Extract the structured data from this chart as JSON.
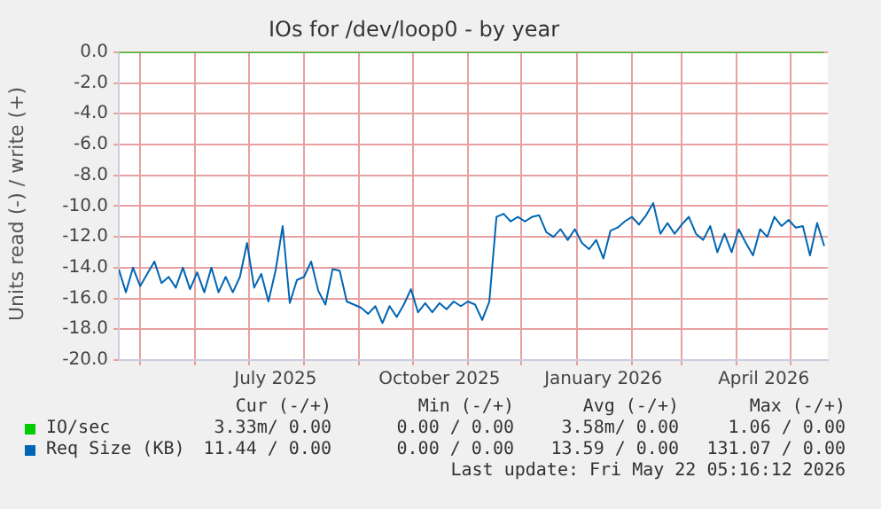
{
  "chart_data": {
    "type": "line",
    "title": "IOs for /dev/loop0 - by year",
    "ylabel": "Units read (-) / write (+)",
    "xlim": [
      "2025-04-19",
      "2026-05-22"
    ],
    "xticks": [
      {
        "value": "2025-05-01",
        "label": null
      },
      {
        "value": "2025-06-01",
        "label": null
      },
      {
        "value": "2025-07-01",
        "label": null
      },
      {
        "value": "2025-07-16",
        "label": "July 2025"
      },
      {
        "value": "2025-08-01",
        "label": null
      },
      {
        "value": "2025-09-01",
        "label": null
      },
      {
        "value": "2025-10-01",
        "label": null
      },
      {
        "value": "2025-10-16",
        "label": "October 2025"
      },
      {
        "value": "2025-11-01",
        "label": null
      },
      {
        "value": "2025-12-01",
        "label": null
      },
      {
        "value": "2026-01-01",
        "label": null
      },
      {
        "value": "2026-01-16",
        "label": "January 2026"
      },
      {
        "value": "2026-02-01",
        "label": null
      },
      {
        "value": "2026-03-01",
        "label": null
      },
      {
        "value": "2026-04-01",
        "label": null
      },
      {
        "value": "2026-04-16",
        "label": "April 2026"
      },
      {
        "value": "2026-05-01",
        "label": null
      }
    ],
    "ylim": [
      -20,
      0
    ],
    "yticks": [
      {
        "value": 0,
        "label": "0.0"
      },
      {
        "value": -2,
        "label": "-2.0"
      },
      {
        "value": -4,
        "label": "-4.0"
      },
      {
        "value": -6,
        "label": "-6.0"
      },
      {
        "value": -8,
        "label": "-8.0"
      },
      {
        "value": -10,
        "label": "-10.0"
      },
      {
        "value": -12,
        "label": "-12.0"
      },
      {
        "value": -14,
        "label": "-14.0"
      },
      {
        "value": -16,
        "label": "-16.0"
      },
      {
        "value": -18,
        "label": "-18.0"
      },
      {
        "value": -20,
        "label": "-20.0"
      }
    ],
    "grid": true,
    "legend": "bottom",
    "marker": "none",
    "line_style": "solid",
    "x": [
      "2025-04-19",
      "2025-04-23",
      "2025-04-27",
      "2025-05-01",
      "2025-05-05",
      "2025-05-09",
      "2025-05-13",
      "2025-05-17",
      "2025-05-21",
      "2025-05-25",
      "2025-05-29",
      "2025-06-02",
      "2025-06-06",
      "2025-06-10",
      "2025-06-14",
      "2025-06-18",
      "2025-06-22",
      "2025-06-26",
      "2025-06-30",
      "2025-07-04",
      "2025-07-08",
      "2025-07-12",
      "2025-07-16",
      "2025-07-20",
      "2025-07-24",
      "2025-07-28",
      "2025-08-01",
      "2025-08-05",
      "2025-08-09",
      "2025-08-13",
      "2025-08-17",
      "2025-08-21",
      "2025-08-25",
      "2025-08-29",
      "2025-09-02",
      "2025-09-06",
      "2025-09-10",
      "2025-09-14",
      "2025-09-18",
      "2025-09-22",
      "2025-09-26",
      "2025-09-30",
      "2025-10-04",
      "2025-10-08",
      "2025-10-12",
      "2025-10-16",
      "2025-10-20",
      "2025-10-24",
      "2025-10-28",
      "2025-11-01",
      "2025-11-05",
      "2025-11-09",
      "2025-11-13",
      "2025-11-17",
      "2025-11-21",
      "2025-11-25",
      "2025-11-29",
      "2025-12-03",
      "2025-12-07",
      "2025-12-11",
      "2025-12-15",
      "2025-12-19",
      "2025-12-23",
      "2025-12-27",
      "2025-12-31",
      "2026-01-04",
      "2026-01-08",
      "2026-01-12",
      "2026-01-16",
      "2026-01-20",
      "2026-01-24",
      "2026-01-28",
      "2026-02-01",
      "2026-02-05",
      "2026-02-09",
      "2026-02-13",
      "2026-02-17",
      "2026-02-21",
      "2026-02-25",
      "2026-03-01",
      "2026-03-05",
      "2026-03-09",
      "2026-03-13",
      "2026-03-17",
      "2026-03-21",
      "2026-03-25",
      "2026-03-29",
      "2026-04-02",
      "2026-04-06",
      "2026-04-10",
      "2026-04-14",
      "2026-04-18",
      "2026-04-22",
      "2026-04-26",
      "2026-04-30",
      "2026-05-04",
      "2026-05-08",
      "2026-05-12",
      "2026-05-16",
      "2026-05-20"
    ],
    "series": [
      {
        "name": "IO/sec",
        "color": "#00cc00",
        "x": [
          "2025-04-19",
          "2026-05-20"
        ],
        "values": [
          0,
          0
        ]
      },
      {
        "name": "Req Size (KB)",
        "color": "#0066b3",
        "values": [
          -14.1,
          -15.6,
          -14.0,
          -15.2,
          -14.4,
          -13.6,
          -15.0,
          -14.6,
          -15.3,
          -14.0,
          -15.4,
          -14.3,
          -15.6,
          -14.0,
          -15.6,
          -14.6,
          -15.6,
          -14.6,
          -12.4,
          -15.3,
          -14.4,
          -16.2,
          -14.2,
          -11.3,
          -16.3,
          -14.8,
          -14.6,
          -13.6,
          -15.5,
          -16.4,
          -14.1,
          -14.2,
          -16.2,
          -16.4,
          -16.6,
          -17.0,
          -16.5,
          -17.6,
          -16.5,
          -17.2,
          -16.4,
          -15.4,
          -16.9,
          -16.3,
          -16.9,
          -16.3,
          -16.7,
          -16.2,
          -16.5,
          -16.2,
          -16.4,
          -17.4,
          -16.2,
          -10.7,
          -10.5,
          -11.0,
          -10.7,
          -11.0,
          -10.7,
          -10.6,
          -11.7,
          -12.0,
          -11.5,
          -12.2,
          -11.5,
          -12.4,
          -12.8,
          -12.2,
          -13.4,
          -11.6,
          -11.4,
          -11.0,
          -10.7,
          -11.2,
          -10.6,
          -9.8,
          -11.8,
          -11.1,
          -11.8,
          -11.2,
          -10.7,
          -11.8,
          -12.2,
          -11.3,
          -13.0,
          -11.8,
          -13.0,
          -11.5,
          -12.4,
          -13.2,
          -11.5,
          -12.0,
          -10.7,
          -11.3,
          -10.9,
          -11.4,
          -11.3,
          -13.2,
          -11.1,
          -12.6
        ]
      }
    ],
    "annotations": [
      "Cur (-/+)",
      "Min (-/+)",
      "Avg (-/+)",
      "Max (-/+)",
      "3.33m/ 0.00",
      "0.00 / 0.00",
      "3.58m/ 0.00",
      "1.06 / 0.00",
      "11.44 / 0.00",
      "0.00 / 0.00",
      "13.59 / 0.00",
      "131.07 / 0.00",
      "Last update: Fri May 22 05:16:12 2026"
    ]
  }
}
